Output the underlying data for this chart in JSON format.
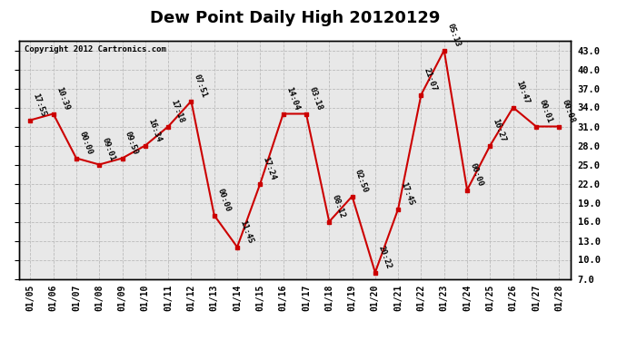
{
  "title": "Dew Point Daily High 20120129",
  "copyright": "Copyright 2012 Cartronics.com",
  "dates": [
    "01/05",
    "01/06",
    "01/07",
    "01/08",
    "01/09",
    "01/10",
    "01/11",
    "01/12",
    "01/13",
    "01/14",
    "01/15",
    "01/16",
    "01/17",
    "01/18",
    "01/19",
    "01/20",
    "01/21",
    "01/22",
    "01/23",
    "01/24",
    "01/25",
    "01/26",
    "01/27",
    "01/28"
  ],
  "values": [
    32.0,
    33.0,
    26.0,
    25.0,
    26.0,
    28.0,
    31.0,
    35.0,
    17.0,
    12.0,
    22.0,
    33.0,
    33.0,
    16.0,
    20.0,
    8.0,
    18.0,
    36.0,
    43.0,
    21.0,
    28.0,
    34.0,
    31.0,
    31.0
  ],
  "labels": [
    "17:55",
    "10:39",
    "00:00",
    "09:01",
    "09:50",
    "16:34",
    "17:18",
    "07:51",
    "00:00",
    "11:45",
    "17:24",
    "14:04",
    "03:18",
    "08:12",
    "02:50",
    "20:22",
    "17:45",
    "21:07",
    "05:13",
    "00:00",
    "16:27",
    "10:47",
    "00:01",
    "00:08"
  ],
  "line_color": "#cc0000",
  "marker_color": "#cc0000",
  "grid_color": "#bbbbbb",
  "background_color": "#ffffff",
  "plot_background": "#e8e8e8",
  "title_fontsize": 13,
  "label_fontsize": 6.5,
  "ymin": 7.0,
  "ymax": 44.5,
  "yticks": [
    7.0,
    10.0,
    13.0,
    16.0,
    19.0,
    22.0,
    25.0,
    28.0,
    31.0,
    34.0,
    37.0,
    40.0,
    43.0
  ]
}
